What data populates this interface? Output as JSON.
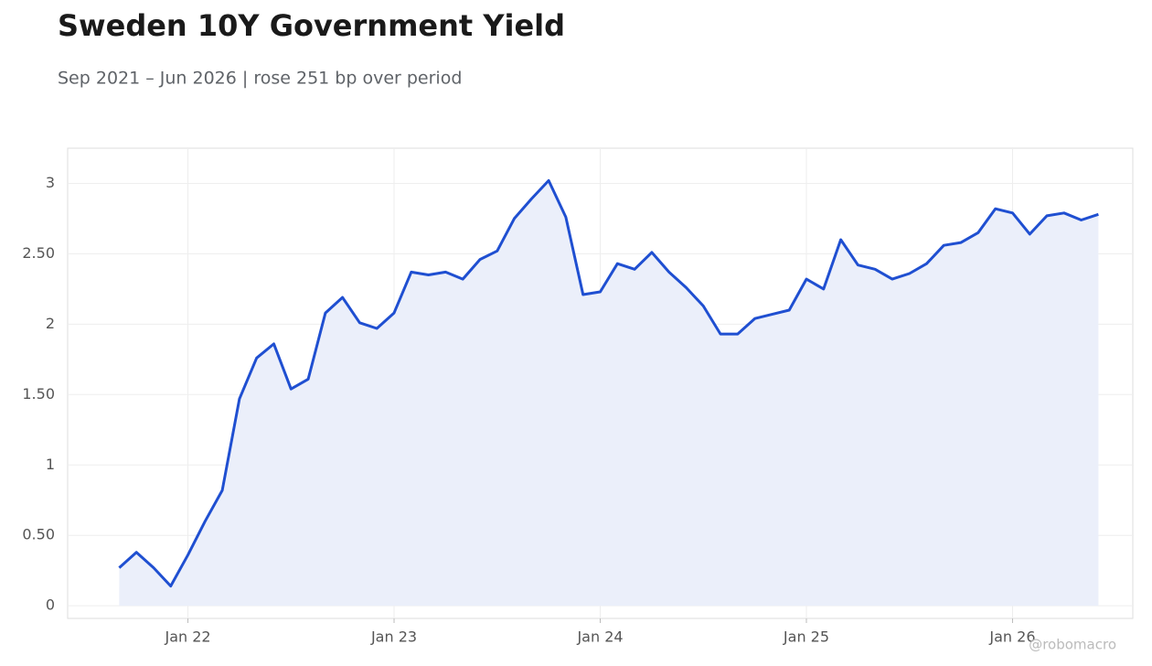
{
  "chart_data": {
    "type": "line",
    "title": "Sweden 10Y Government Yield",
    "subtitle": "Sep 2021 – Jun 2026 | rose 251 bp over period",
    "watermark": "@robomacro",
    "x": [
      "2021-09",
      "2021-10",
      "2021-11",
      "2021-12",
      "2022-01",
      "2022-02",
      "2022-03",
      "2022-04",
      "2022-05",
      "2022-06",
      "2022-07",
      "2022-08",
      "2022-09",
      "2022-10",
      "2022-11",
      "2022-12",
      "2023-01",
      "2023-02",
      "2023-03",
      "2023-04",
      "2023-05",
      "2023-06",
      "2023-07",
      "2023-08",
      "2023-09",
      "2023-10",
      "2023-11",
      "2023-12",
      "2024-01",
      "2024-02",
      "2024-03",
      "2024-04",
      "2024-05",
      "2024-06",
      "2024-07",
      "2024-08",
      "2024-09",
      "2024-10",
      "2024-11",
      "2024-12",
      "2025-01",
      "2025-02",
      "2025-03",
      "2025-04",
      "2025-05",
      "2025-06",
      "2025-07",
      "2025-08",
      "2025-09",
      "2025-10",
      "2025-11",
      "2025-12",
      "2026-01",
      "2026-02",
      "2026-03",
      "2026-04",
      "2026-05",
      "2026-06"
    ],
    "series": [
      {
        "color": "#1f4fd1",
        "fill": "#ebeffa",
        "values": [
          0.27,
          0.38,
          0.27,
          0.14,
          0.36,
          0.6,
          0.82,
          1.47,
          1.76,
          1.86,
          1.54,
          1.61,
          2.08,
          2.19,
          2.01,
          1.97,
          2.08,
          2.37,
          2.35,
          2.37,
          2.32,
          2.46,
          2.52,
          2.75,
          2.89,
          3.02,
          2.76,
          2.21,
          2.23,
          2.43,
          2.39,
          2.51,
          2.37,
          2.26,
          2.13,
          1.93,
          1.93,
          2.04,
          2.07,
          2.1,
          2.32,
          2.25,
          2.6,
          2.42,
          2.39,
          2.32,
          2.36,
          2.43,
          2.56,
          2.58,
          2.65,
          2.82,
          2.79,
          2.64,
          2.77,
          2.79,
          2.74,
          2.78
        ]
      }
    ],
    "xlim": [
      "2021-06",
      "2026-08"
    ],
    "xticks": [
      {
        "value": "2022-01",
        "label": "Jan 22"
      },
      {
        "value": "2023-01",
        "label": "Jan 23"
      },
      {
        "value": "2024-01",
        "label": "Jan 24"
      },
      {
        "value": "2025-01",
        "label": "Jan 25"
      },
      {
        "value": "2026-01",
        "label": "Jan 26"
      }
    ],
    "ylim": [
      -0.09,
      3.25
    ],
    "yticks": [
      0,
      {
        "value": 0.5,
        "label": "0.50"
      },
      1,
      {
        "value": 1.5,
        "label": "1.50"
      },
      2,
      {
        "value": 2.5,
        "label": "2.50"
      },
      3
    ],
    "grid": true
  }
}
